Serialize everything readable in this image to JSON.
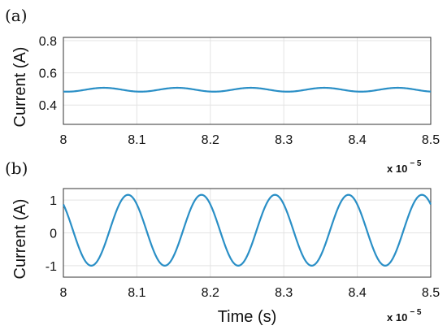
{
  "chart_data": [
    {
      "panel_label": "(a)",
      "type": "line",
      "ylabel": "Current (A)",
      "xlabel": "",
      "xlim": [
        8e-05,
        8.5e-05
      ],
      "ylim": [
        0.28,
        0.82
      ],
      "xticks": [
        8e-05,
        8.1e-05,
        8.2e-05,
        8.3e-05,
        8.4e-05,
        8.5e-05
      ],
      "xtick_labels": [
        "8",
        "8.1",
        "8.2",
        "8.3",
        "8.4",
        "8.5"
      ],
      "yticks": [
        0.4,
        0.6,
        0.8
      ],
      "ytick_labels": [
        "0.4",
        "0.6",
        "0.8"
      ],
      "x_multiplier": {
        "base": "x 10",
        "exponent": "− 5"
      },
      "grid": true,
      "color": "#2a8fc6",
      "waveform": {
        "kind": "sinusoid",
        "offset": 0.495,
        "amplitude": 0.012,
        "period": 1e-06,
        "first_peak": 8.055e-05
      },
      "series": [
        {
          "x": [
            8e-05,
            8.025e-05,
            8.055e-05,
            8.105e-05,
            8.155e-05,
            8.205e-05,
            8.255e-05,
            8.305e-05,
            8.355e-05,
            8.405e-05,
            8.455e-05,
            8.5e-05
          ],
          "values": [
            0.49,
            0.495,
            0.507,
            0.483,
            0.507,
            0.483,
            0.507,
            0.483,
            0.507,
            0.483,
            0.507,
            0.487
          ]
        }
      ]
    },
    {
      "panel_label": "(b)",
      "type": "line",
      "ylabel": "Current (A)",
      "xlabel": "Time (s)",
      "xlim": [
        8e-05,
        8.5e-05
      ],
      "ylim": [
        -1.35,
        1.35
      ],
      "xticks": [
        8e-05,
        8.1e-05,
        8.2e-05,
        8.3e-05,
        8.4e-05,
        8.5e-05
      ],
      "xtick_labels": [
        "8",
        "8.1",
        "8.2",
        "8.3",
        "8.4",
        "8.5"
      ],
      "yticks": [
        -1,
        0,
        1
      ],
      "ytick_labels": [
        "-1",
        "0",
        "1"
      ],
      "x_multiplier": {
        "base": "x 10",
        "exponent": "− 5"
      },
      "grid": true,
      "color": "#2a8fc6",
      "waveform": {
        "kind": "sinusoid",
        "offset": 0.08,
        "amplitude": 1.08,
        "period": 1e-06,
        "first_peak": 8.088e-05
      },
      "series": [
        {
          "x": [
            8e-05,
            8.038e-05,
            8.088e-05,
            8.138e-05,
            8.188e-05,
            8.238e-05,
            8.288e-05,
            8.338e-05,
            8.388e-05,
            8.438e-05,
            8.488e-05,
            8.5e-05
          ],
          "values": [
            0.7,
            -1.0,
            1.16,
            -1.0,
            1.16,
            -1.0,
            1.16,
            -1.0,
            1.16,
            -1.0,
            1.16,
            0.75
          ]
        }
      ]
    }
  ]
}
